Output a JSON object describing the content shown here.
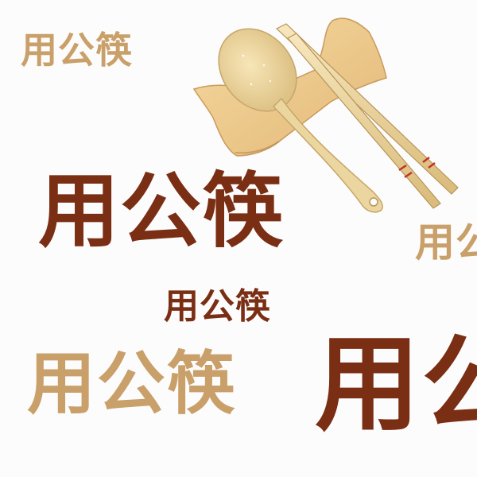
{
  "text": "用公筷",
  "colors": {
    "tan": "#c9a06a",
    "brown": "#7a2e14",
    "background": "#fdfcfc",
    "wood_light": "#f4dfa8",
    "wood_mid": "#e6c98c",
    "wood_dark": "#c9a664",
    "stripe_red": "#c2332a"
  },
  "illustration": {
    "icon": "spoon-and-chopsticks-icon"
  }
}
